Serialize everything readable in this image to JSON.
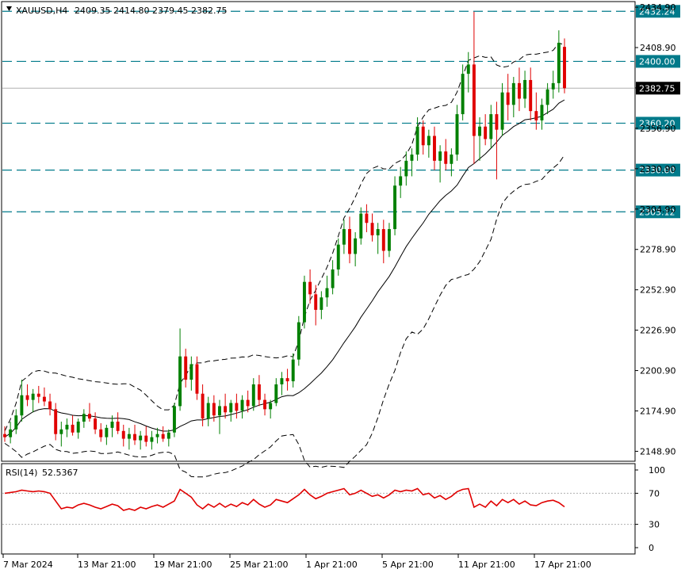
{
  "header": {
    "symbol": "XAUUSD,H4",
    "ohlc": "2409.35 2414.80 2379.45 2382.75"
  },
  "rsi_header": {
    "label": "RSI(14)",
    "value": "52.5367"
  },
  "colors": {
    "bull": "#008000",
    "bear": "#e00000",
    "bands": "#000000",
    "levels": "#007a8a",
    "rsi": "#e00000",
    "price_tag_bg": "#000000"
  },
  "price_axis": {
    "ticks": [
      "2434.90",
      "2408.90",
      "2382.90",
      "2356.90",
      "2330.90",
      "2304.90",
      "2278.90",
      "2252.90",
      "2226.90",
      "2200.90",
      "2174.90",
      "2148.90"
    ],
    "current_price": "2382.75"
  },
  "levels": [
    {
      "value": 2432.24,
      "label": "2432.24"
    },
    {
      "value": 2400.0,
      "label": "2400.00"
    },
    {
      "value": 2360.2,
      "label": "2360.20"
    },
    {
      "value": 2330.0,
      "label": "2330.00"
    },
    {
      "value": 2303.12,
      "label": "2303.12"
    }
  ],
  "rsi_axis": {
    "ticks": [
      "100",
      "70",
      "30",
      "0"
    ],
    "levels": [
      70,
      30
    ]
  },
  "time_axis": {
    "labels": [
      "7 Mar 2024",
      "13 Mar 21:00",
      "19 Mar 21:00",
      "25 Mar 21:00",
      "1 Apr 21:00",
      "5 Apr 21:00",
      "11 Apr 21:00",
      "17 Apr 21:00"
    ]
  },
  "chart_data": {
    "type": "candlestick",
    "title": "XAUUSD,H4",
    "ylim": [
      2143,
      2438
    ],
    "rsi_ylim": [
      0,
      100
    ],
    "candles": [
      [
        2160,
        2165,
        2155,
        2158
      ],
      [
        2158,
        2168,
        2154,
        2163
      ],
      [
        2163,
        2176,
        2160,
        2172
      ],
      [
        2172,
        2195,
        2168,
        2185
      ],
      [
        2185,
        2192,
        2178,
        2182
      ],
      [
        2182,
        2189,
        2174,
        2186
      ],
      [
        2186,
        2191,
        2180,
        2184
      ],
      [
        2184,
        2190,
        2178,
        2181
      ],
      [
        2181,
        2186,
        2172,
        2176
      ],
      [
        2176,
        2180,
        2156,
        2160
      ],
      [
        2160,
        2168,
        2152,
        2163
      ],
      [
        2163,
        2170,
        2158,
        2166
      ],
      [
        2166,
        2172,
        2159,
        2161
      ],
      [
        2161,
        2170,
        2157,
        2168
      ],
      [
        2168,
        2176,
        2164,
        2173
      ],
      [
        2173,
        2180,
        2168,
        2170
      ],
      [
        2170,
        2174,
        2160,
        2163
      ],
      [
        2163,
        2167,
        2155,
        2158
      ],
      [
        2158,
        2166,
        2153,
        2164
      ],
      [
        2164,
        2172,
        2158,
        2168
      ],
      [
        2168,
        2174,
        2160,
        2162
      ],
      [
        2162,
        2166,
        2152,
        2157
      ],
      [
        2157,
        2164,
        2150,
        2160
      ],
      [
        2160,
        2166,
        2153,
        2156
      ],
      [
        2156,
        2162,
        2150,
        2159
      ],
      [
        2159,
        2165,
        2152,
        2155
      ],
      [
        2155,
        2162,
        2150,
        2158
      ],
      [
        2158,
        2164,
        2154,
        2160
      ],
      [
        2160,
        2165,
        2155,
        2157
      ],
      [
        2157,
        2163,
        2152,
        2161
      ],
      [
        2161,
        2180,
        2158,
        2178
      ],
      [
        2178,
        2228,
        2175,
        2210
      ],
      [
        2210,
        2215,
        2190,
        2195
      ],
      [
        2195,
        2210,
        2188,
        2205
      ],
      [
        2205,
        2210,
        2182,
        2186
      ],
      [
        2186,
        2192,
        2165,
        2170
      ],
      [
        2170,
        2184,
        2165,
        2180
      ],
      [
        2180,
        2185,
        2168,
        2172
      ],
      [
        2172,
        2182,
        2160,
        2178
      ],
      [
        2178,
        2186,
        2170,
        2174
      ],
      [
        2174,
        2182,
        2168,
        2180
      ],
      [
        2180,
        2186,
        2170,
        2175
      ],
      [
        2175,
        2185,
        2170,
        2182
      ],
      [
        2182,
        2188,
        2174,
        2178
      ],
      [
        2178,
        2196,
        2175,
        2192
      ],
      [
        2192,
        2198,
        2178,
        2182
      ],
      [
        2182,
        2186,
        2172,
        2176
      ],
      [
        2176,
        2182,
        2170,
        2180
      ],
      [
        2180,
        2196,
        2178,
        2192
      ],
      [
        2192,
        2200,
        2185,
        2196
      ],
      [
        2196,
        2202,
        2188,
        2194
      ],
      [
        2194,
        2212,
        2190,
        2208
      ],
      [
        2208,
        2236,
        2204,
        2232
      ],
      [
        2232,
        2262,
        2228,
        2258
      ],
      [
        2258,
        2266,
        2244,
        2250
      ],
      [
        2250,
        2256,
        2230,
        2240
      ],
      [
        2240,
        2252,
        2234,
        2248
      ],
      [
        2248,
        2262,
        2242,
        2254
      ],
      [
        2254,
        2272,
        2250,
        2266
      ],
      [
        2266,
        2286,
        2262,
        2282
      ],
      [
        2282,
        2298,
        2276,
        2292
      ],
      [
        2292,
        2300,
        2270,
        2276
      ],
      [
        2276,
        2290,
        2268,
        2286
      ],
      [
        2286,
        2306,
        2282,
        2302
      ],
      [
        2302,
        2308,
        2290,
        2296
      ],
      [
        2296,
        2302,
        2284,
        2288
      ],
      [
        2288,
        2296,
        2276,
        2292
      ],
      [
        2292,
        2298,
        2270,
        2278
      ],
      [
        2278,
        2296,
        2274,
        2292
      ],
      [
        2292,
        2326,
        2288,
        2320
      ],
      [
        2320,
        2332,
        2312,
        2326
      ],
      [
        2326,
        2342,
        2320,
        2336
      ],
      [
        2336,
        2344,
        2326,
        2340
      ],
      [
        2340,
        2364,
        2336,
        2358
      ],
      [
        2358,
        2362,
        2340,
        2346
      ],
      [
        2346,
        2356,
        2338,
        2352
      ],
      [
        2352,
        2358,
        2330,
        2336
      ],
      [
        2336,
        2346,
        2322,
        2342
      ],
      [
        2342,
        2350,
        2330,
        2334
      ],
      [
        2334,
        2344,
        2326,
        2340
      ],
      [
        2340,
        2372,
        2336,
        2366
      ],
      [
        2366,
        2398,
        2362,
        2392
      ],
      [
        2392,
        2406,
        2380,
        2398
      ],
      [
        2398,
        2432,
        2334,
        2352
      ],
      [
        2352,
        2364,
        2336,
        2358
      ],
      [
        2358,
        2366,
        2346,
        2350
      ],
      [
        2350,
        2372,
        2344,
        2366
      ],
      [
        2366,
        2374,
        2324,
        2356
      ],
      [
        2356,
        2386,
        2352,
        2380
      ],
      [
        2380,
        2392,
        2362,
        2372
      ],
      [
        2372,
        2390,
        2364,
        2386
      ],
      [
        2386,
        2396,
        2368,
        2376
      ],
      [
        2376,
        2394,
        2370,
        2388
      ],
      [
        2388,
        2396,
        2362,
        2368
      ],
      [
        2368,
        2380,
        2356,
        2362
      ],
      [
        2362,
        2376,
        2356,
        2372
      ],
      [
        2372,
        2386,
        2366,
        2382
      ],
      [
        2382,
        2394,
        2376,
        2386
      ],
      [
        2386,
        2420,
        2380,
        2412
      ],
      [
        2409.35,
        2414.8,
        2379.45,
        2382.75
      ]
    ],
    "rsi": [
      70,
      71,
      72,
      74,
      73,
      72,
      73,
      72,
      70,
      60,
      50,
      52,
      51,
      55,
      57,
      55,
      52,
      50,
      53,
      56,
      54,
      48,
      50,
      48,
      52,
      50,
      53,
      55,
      52,
      56,
      60,
      75,
      70,
      65,
      55,
      50,
      56,
      52,
      57,
      52,
      56,
      53,
      58,
      55,
      62,
      56,
      52,
      55,
      62,
      60,
      58,
      63,
      68,
      75,
      68,
      63,
      66,
      70,
      72,
      74,
      76,
      68,
      70,
      74,
      70,
      66,
      68,
      64,
      68,
      74,
      72,
      74,
      73,
      76,
      68,
      70,
      64,
      67,
      62,
      66,
      72,
      75,
      76,
      52,
      56,
      52,
      60,
      54,
      62,
      58,
      62,
      56,
      60,
      55,
      54,
      58,
      60,
      61,
      58,
      52.5
    ],
    "bb_upper_note": "Bollinger bands drawn as dashed lines around price"
  }
}
